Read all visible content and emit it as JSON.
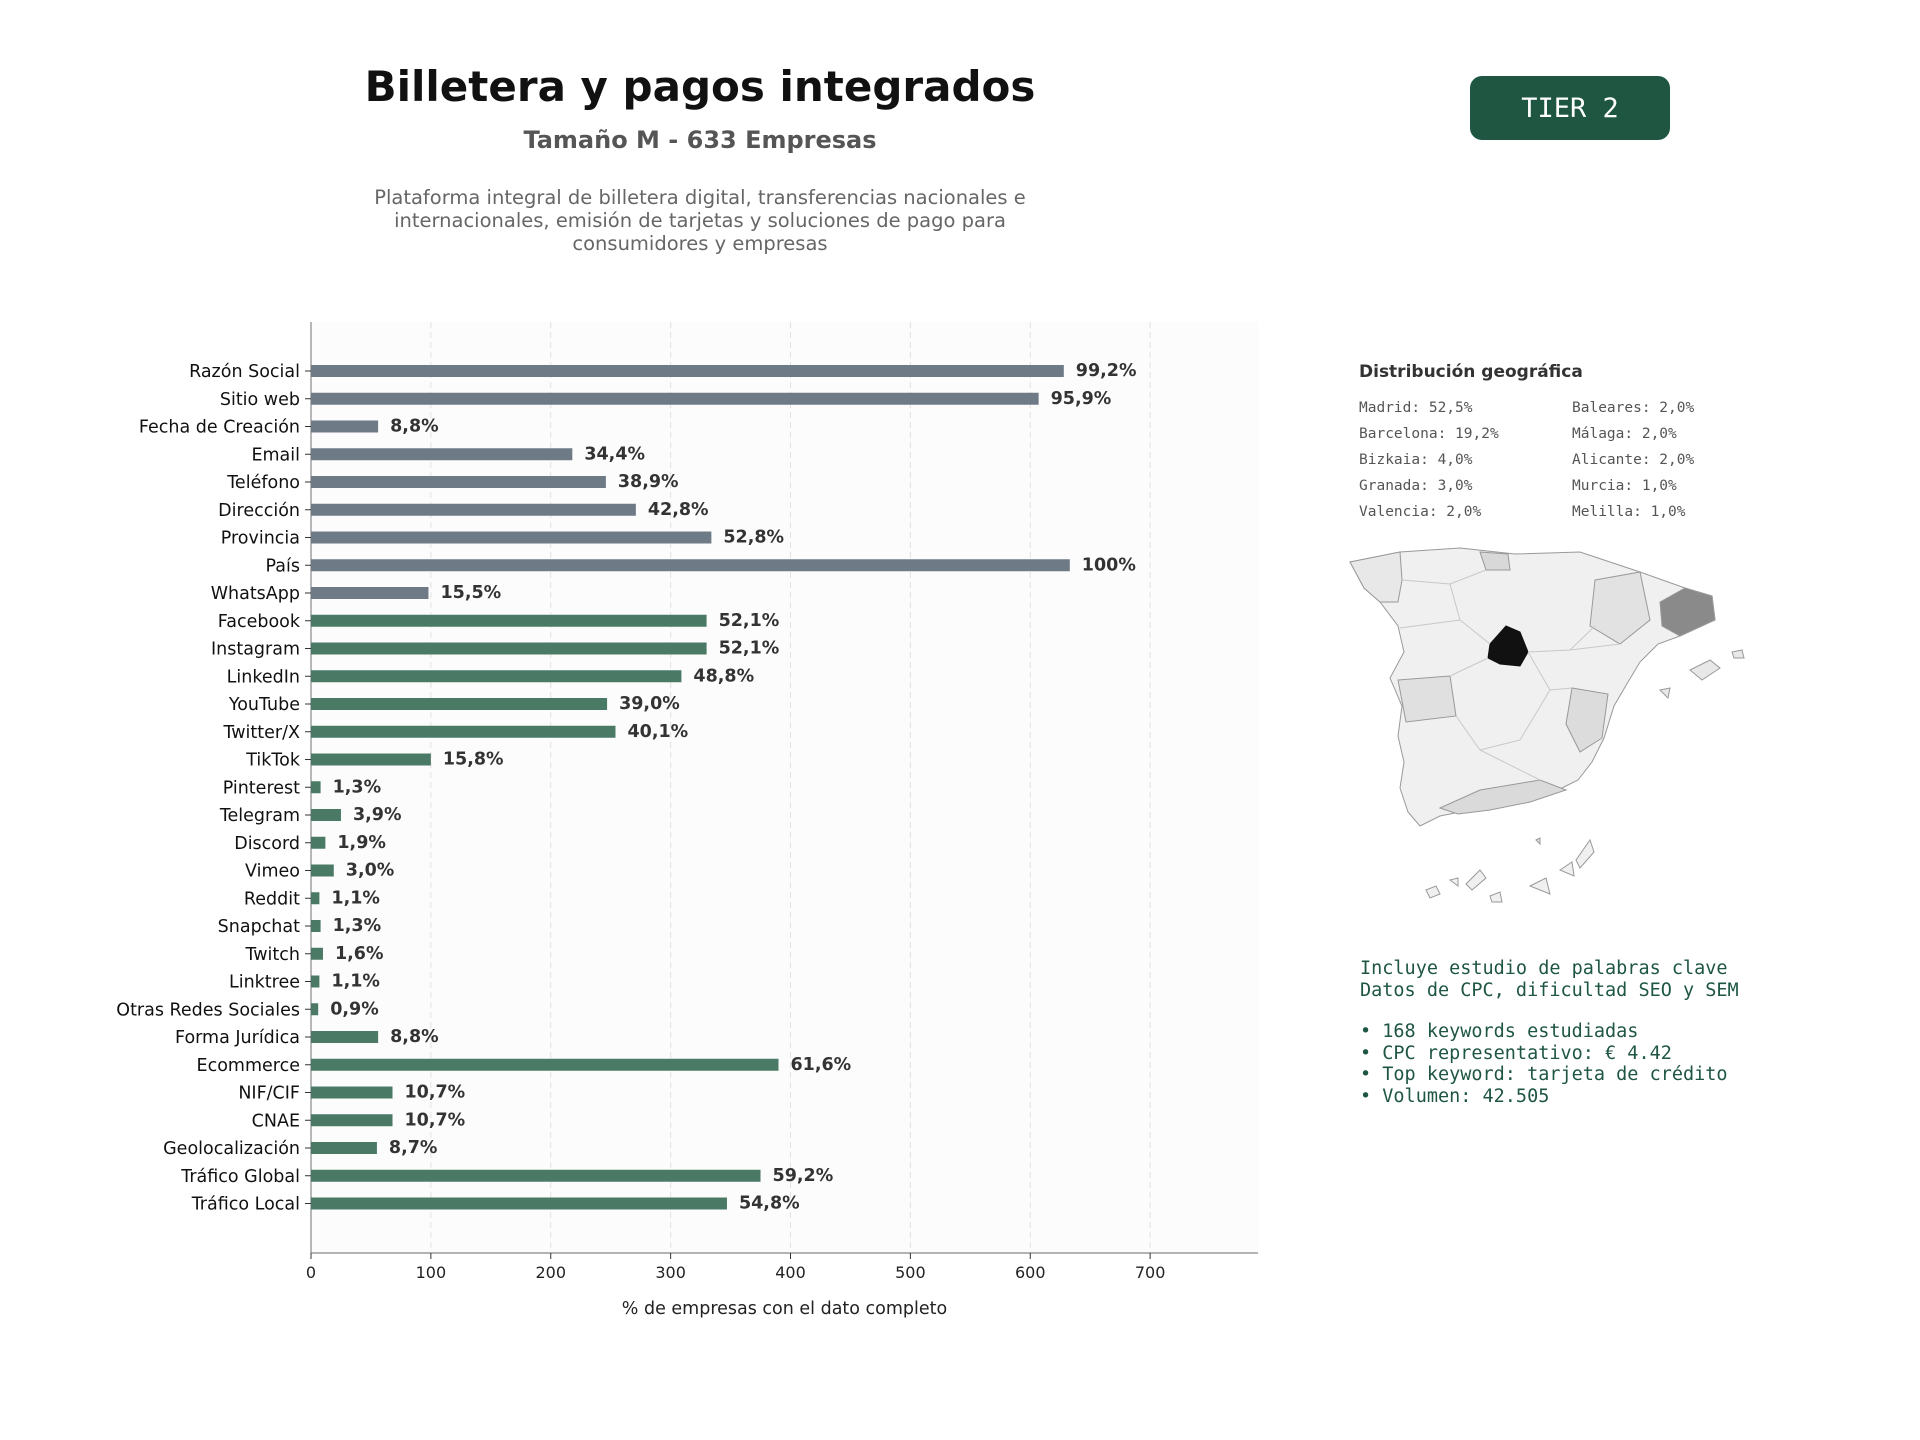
{
  "header": {
    "title": "Billetera y pagos integrados",
    "subtitle": "Tamaño M - 633 Empresas",
    "description": "Plataforma integral de billetera digital, transferencias nacionales e internacionales, emisión de tarjetas y soluciones de pago para consumidores y empresas",
    "tier_badge": "TIER 2"
  },
  "colors": {
    "bar_gray": "#6e7a85",
    "bar_green": "#4a7a66",
    "accent": "#1e5642",
    "madrid": "#111111",
    "barcelona": "#8a8a8a"
  },
  "chart_data": {
    "type": "bar",
    "orientation": "horizontal",
    "title": "",
    "xlabel": "% de empresas con el dato completo",
    "ylabel": "",
    "xlim": [
      0,
      790
    ],
    "xticks": [
      0,
      100,
      200,
      300,
      400,
      500,
      600,
      700
    ],
    "grid": "vertical dashed",
    "categories": [
      "Razón Social",
      "Sitio web",
      "Fecha de Creación",
      "Email",
      "Teléfono",
      "Dirección",
      "Provincia",
      "País",
      "WhatsApp",
      "Facebook",
      "Instagram",
      "LinkedIn",
      "YouTube",
      "Twitter/X",
      "TikTok",
      "Pinterest",
      "Telegram",
      "Discord",
      "Vimeo",
      "Reddit",
      "Snapchat",
      "Twitch",
      "Linktree",
      "Otras Redes Sociales",
      "Forma Jurídica",
      "Ecommerce",
      "NIF/CIF",
      "CNAE",
      "Geolocalización",
      "Tráfico Global",
      "Tráfico Local"
    ],
    "values": [
      628,
      607,
      56,
      218,
      246,
      271,
      334,
      633,
      98,
      330,
      330,
      309,
      247,
      254,
      100,
      8,
      25,
      12,
      19,
      7,
      8,
      10,
      7,
      6,
      56,
      390,
      68,
      68,
      55,
      375,
      347
    ],
    "labels": [
      "99,2%",
      "95,9%",
      "8,8%",
      "34,4%",
      "38,9%",
      "42,8%",
      "52,8%",
      "100%",
      "15,5%",
      "52,1%",
      "52,1%",
      "48,8%",
      "39,0%",
      "40,1%",
      "15,8%",
      "1,3%",
      "3,9%",
      "1,9%",
      "3,0%",
      "1,1%",
      "1,3%",
      "1,6%",
      "1,1%",
      "0,9%",
      "8,8%",
      "61,6%",
      "10,7%",
      "10,7%",
      "8,7%",
      "59,2%",
      "54,8%"
    ],
    "gray_count": 9
  },
  "geo": {
    "title": "Distribución geográfica",
    "items": [
      "Madrid: 52,5%",
      "Barcelona: 19,2%",
      "Bizkaia: 4,0%",
      "Granada: 3,0%",
      "Valencia: 2,0%",
      "Baleares: 2,0%",
      "Málaga: 2,0%",
      "Alicante: 2,0%",
      "Murcia: 1,0%",
      "Melilla: 1,0%"
    ]
  },
  "keywords": {
    "intro_1": "Incluye estudio de palabras clave",
    "intro_2": "Datos de CPC, dificultad SEO y SEM",
    "bullets": [
      "• 168 keywords estudiadas",
      "• CPC representativo: € 4.42",
      "• Top keyword: tarjeta de crédito",
      "• Volumen: 42.505"
    ]
  }
}
